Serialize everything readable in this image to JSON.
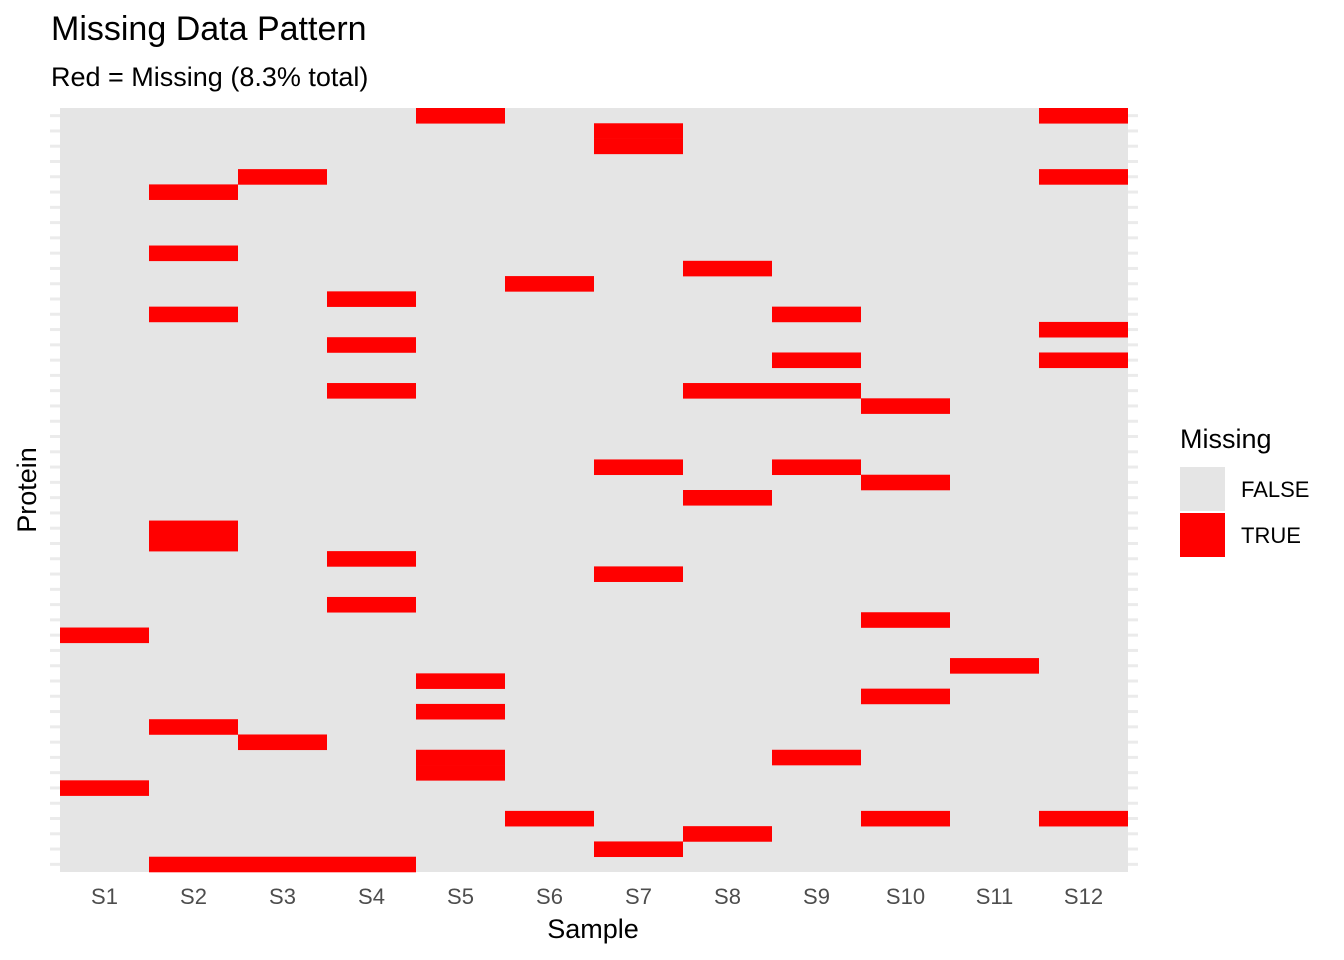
{
  "chart_data": {
    "type": "heatmap",
    "title": "Missing Data Pattern",
    "subtitle": "Red = Missing (8.3% total)",
    "xlabel": "Sample",
    "ylabel": "Protein",
    "samples": [
      "S1",
      "S2",
      "S3",
      "S4",
      "S5",
      "S6",
      "S7",
      "S8",
      "S9",
      "S10",
      "S11",
      "S12"
    ],
    "protein_count": 50,
    "missing_cells": [
      {
        "sample": "S1",
        "rows": [
          34,
          44
        ]
      },
      {
        "sample": "S2",
        "rows": [
          5,
          9,
          13,
          27,
          28,
          40,
          49
        ]
      },
      {
        "sample": "S3",
        "rows": [
          4,
          41,
          49
        ]
      },
      {
        "sample": "S4",
        "rows": [
          12,
          15,
          18,
          29,
          32,
          49
        ]
      },
      {
        "sample": "S5",
        "rows": [
          0,
          37,
          39,
          42,
          43
        ]
      },
      {
        "sample": "S6",
        "rows": [
          11,
          46
        ]
      },
      {
        "sample": "S7",
        "rows": [
          1,
          2,
          23,
          30,
          48
        ]
      },
      {
        "sample": "S8",
        "rows": [
          10,
          18,
          25,
          47
        ]
      },
      {
        "sample": "S9",
        "rows": [
          13,
          16,
          18,
          23,
          42
        ]
      },
      {
        "sample": "S10",
        "rows": [
          19,
          24,
          33,
          38,
          46
        ]
      },
      {
        "sample": "S11",
        "rows": [
          36
        ]
      },
      {
        "sample": "S12",
        "rows": [
          0,
          4,
          14,
          16,
          46
        ]
      }
    ],
    "missing_percent": 8.3,
    "legend": {
      "title": "Missing",
      "position": "right",
      "entries": [
        {
          "label": "FALSE",
          "color": "#e5e5e5"
        },
        {
          "label": "TRUE",
          "color": "#ff0000"
        }
      ]
    }
  },
  "colors": {
    "present": "#e5e5e5",
    "missing": "#ff0000",
    "tick": "#ebebeb"
  }
}
